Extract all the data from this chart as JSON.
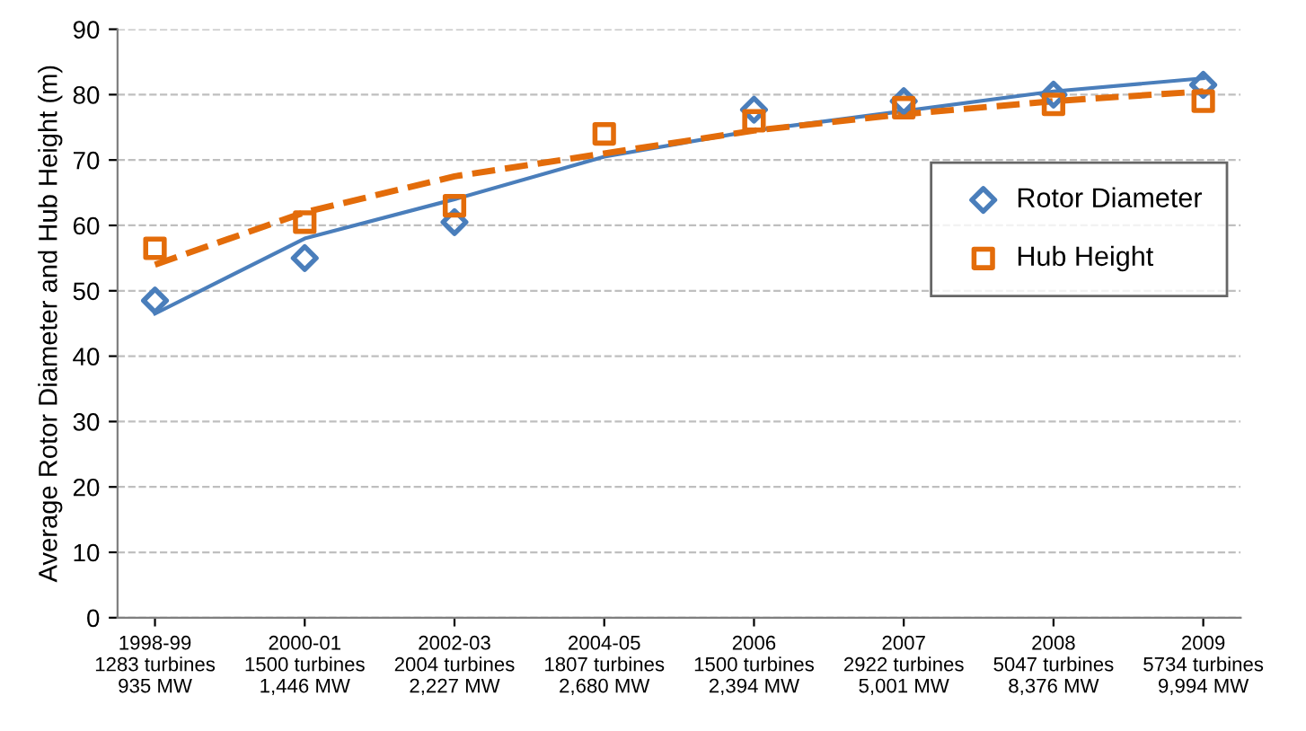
{
  "chart_data": {
    "type": "scatter",
    "ylabel": "Average Rotor Diameter and Hub Height (m)",
    "categories": [
      "1998-99\n1283 turbines\n935 MW",
      "2000-01\n1500 turbines\n1,446 MW",
      "2002-03\n2004 turbines\n2,227 MW",
      "2004-05\n1807 turbines\n2,680 MW",
      "2006\n1500 turbines\n2,394 MW",
      "2007\n2922 turbines\n5,001 MW",
      "2008\n5047 turbines\n8,376 MW",
      "2009\n5734 turbines\n9,994 MW"
    ],
    "series": [
      {
        "name": "Rotor Diameter",
        "color": "#4a7ebb",
        "marker": "diamond",
        "values": [
          48.5,
          55,
          60.5,
          null,
          77.7,
          79,
          80,
          81.5
        ]
      },
      {
        "name": "Hub Height",
        "color": "#e36c0a",
        "marker": "square",
        "values": [
          56.5,
          60.5,
          63,
          74,
          76,
          78,
          78.5,
          79
        ]
      },
      {
        "type": "line",
        "color": "#4a7ebb",
        "line_style": "solid",
        "values": [
          46.5,
          58,
          64,
          70.5,
          74.5,
          77.5,
          80.5,
          82.5
        ]
      },
      {
        "type": "line",
        "color": "#e36c0a",
        "line_style": "dashed",
        "values": [
          54,
          62,
          67.5,
          71,
          74.5,
          77,
          79,
          80.5
        ]
      }
    ],
    "ylim": [
      0,
      90
    ],
    "yticks": [
      0,
      10,
      20,
      30,
      40,
      50,
      60,
      70,
      80,
      90
    ],
    "grid": "y",
    "legend": "right"
  }
}
